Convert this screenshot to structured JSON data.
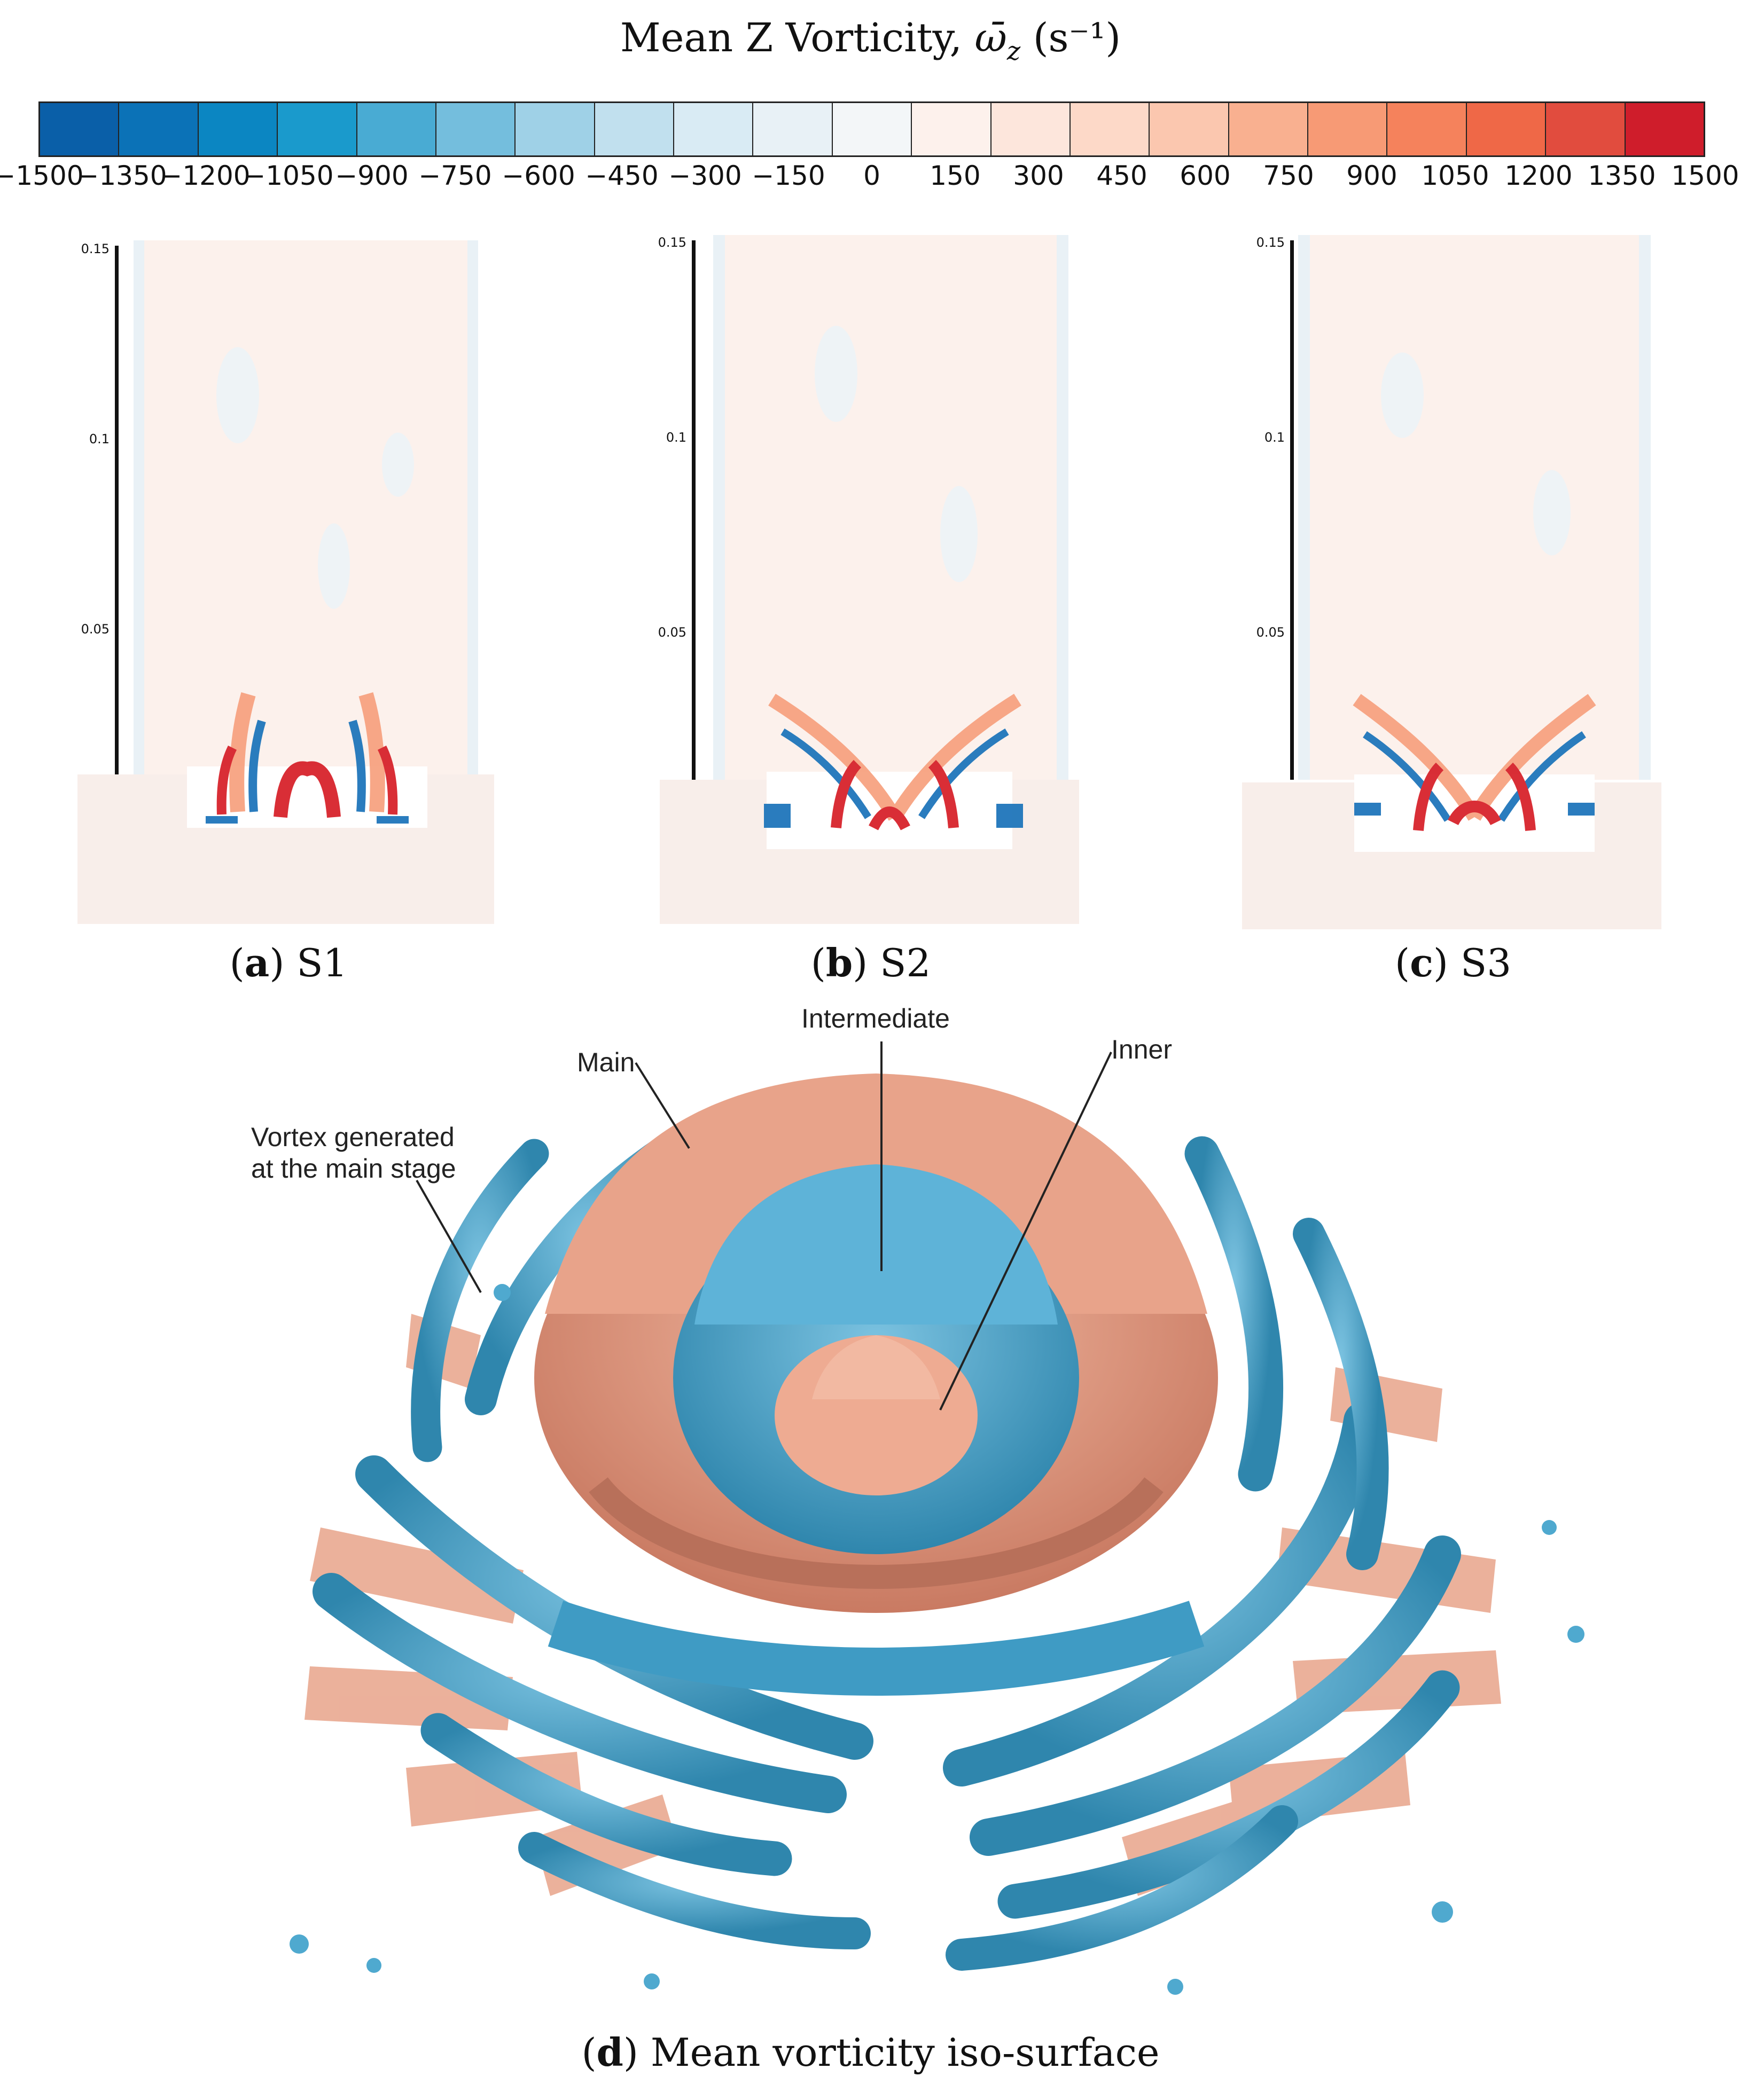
{
  "colorbar": {
    "title": "Mean Z Vorticity,",
    "symbol": "ω̄",
    "subscript": "z",
    "unit": "(s⁻¹)",
    "ticks": [
      "−1500",
      "−1350",
      "−1200",
      "−1050",
      "−900",
      "−750",
      "−600",
      "−450",
      "−300",
      "−150",
      "0",
      "150",
      "300",
      "450",
      "600",
      "750",
      "900",
      "1050",
      "1200",
      "1350",
      "1500"
    ],
    "colors": [
      "#0a5fa8",
      "#0b72b7",
      "#0b86c2",
      "#1a9acc",
      "#49abd3",
      "#74bedd",
      "#9fd1e7",
      "#c1e0ee",
      "#d9ebf4",
      "#e8f1f6",
      "#f3f6f8",
      "#fdf1ec",
      "#fde6dc",
      "#fdd9c8",
      "#fbc7af",
      "#f9b090",
      "#f79a75",
      "#f5825c",
      "#ef6847",
      "#e14c3e",
      "#cf1d2b"
    ]
  },
  "axis": {
    "ticks": [
      "0.15",
      "0.1",
      "0.05"
    ]
  },
  "panels": [
    {
      "letter": "a",
      "name": "S1"
    },
    {
      "letter": "b",
      "name": "S2"
    },
    {
      "letter": "c",
      "name": "S3"
    }
  ],
  "isosurface": {
    "labels": {
      "main": "Main",
      "intermediate": "Intermediate",
      "inner": "Inner",
      "vortex_line1": "Vortex generated",
      "vortex_line2": "at the main stage"
    },
    "caption_letter": "d",
    "caption_text": "Mean vorticity iso-surface",
    "colors": {
      "blue": "#4fa9cf",
      "blue_dark": "#2f86ad",
      "salmon": "#e8a38a",
      "salmon_dark": "#c97a62"
    }
  }
}
